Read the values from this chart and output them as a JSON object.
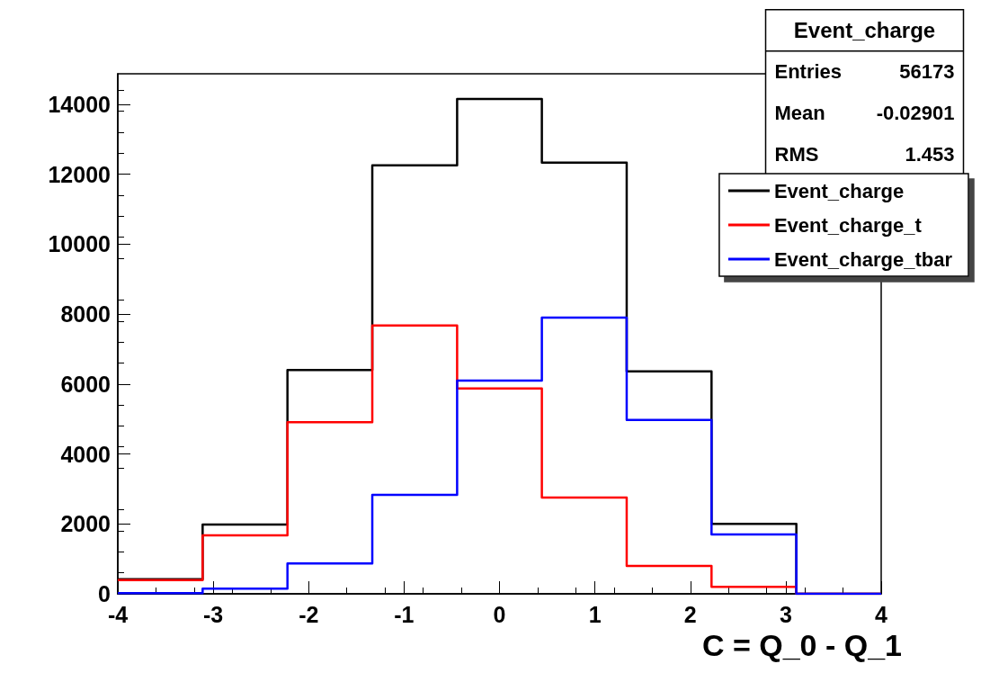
{
  "chart_data": {
    "type": "histogram",
    "xlabel": "C = Q_0 - Q_1",
    "bins": [
      -4,
      -3.111,
      -2.222,
      -1.333,
      -0.444,
      0.444,
      1.333,
      2.222,
      3.111,
      4
    ],
    "series": [
      {
        "name": "Event_charge",
        "color": "#000000",
        "values": [
          420,
          1980,
          6400,
          12250,
          14150,
          12330,
          6360,
          2000,
          0
        ]
      },
      {
        "name": "Event_charge_t",
        "color": "#ff0000",
        "values": [
          390,
          1670,
          4910,
          7670,
          5870,
          2750,
          800,
          200,
          0
        ]
      },
      {
        "name": "Event_charge_tbar",
        "color": "#0000ff",
        "values": [
          20,
          150,
          870,
          2830,
          6100,
          7900,
          4970,
          1700,
          0
        ]
      }
    ],
    "xlim": [
      -4,
      4
    ],
    "xticks": [
      -4,
      -3,
      -2,
      -1,
      0,
      1,
      2,
      3,
      4
    ],
    "ylim": [
      0,
      14870
    ],
    "yticks": [
      0,
      2000,
      4000,
      6000,
      8000,
      10000,
      12000,
      14000
    ],
    "annotations": [
      "Event_charge",
      "Entries 56173",
      "Mean -0.02901",
      "RMS 1.453"
    ],
    "legend": "top right",
    "grid": false
  }
}
